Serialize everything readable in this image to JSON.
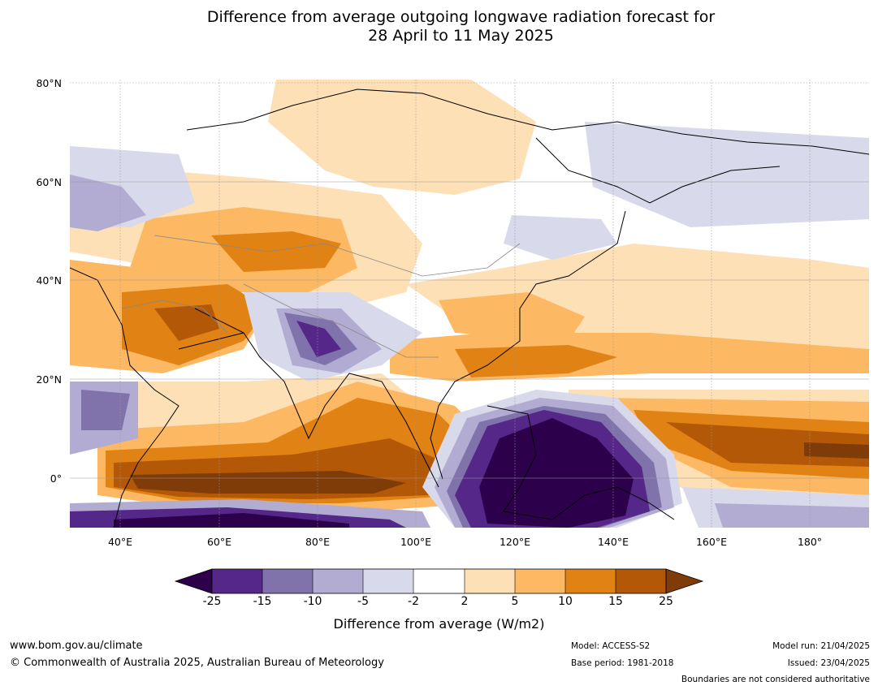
{
  "title_line1": "Difference from average outgoing longwave radiation forecast for",
  "title_line2": "28 April to 11 May 2025",
  "lat_labels": [
    "80°N",
    "60°N",
    "40°N",
    "20°N",
    "0°"
  ],
  "lon_labels": [
    "40°E",
    "60°E",
    "80°E",
    "100°E",
    "120°E",
    "140°E",
    "160°E",
    "180°"
  ],
  "colorbar": {
    "ticks": [
      "-25",
      "-15",
      "-10",
      "-5",
      "-2",
      "2",
      "5",
      "10",
      "15",
      "25"
    ],
    "colors": [
      "#2d004b",
      "#542788",
      "#8073ac",
      "#b2abd2",
      "#d8daeb",
      "#ffffff",
      "#fee0b6",
      "#fdb863",
      "#e08214",
      "#b35806",
      "#7f3b08"
    ],
    "label": "Difference from average (W/m2)"
  },
  "footer": {
    "website": "www.bom.gov.au/climate",
    "copyright": "© Commonwealth of Australia 2025, Australian Bureau of Meteorology",
    "model": "Model: ACCESS-S2",
    "base_period": "Base period: 1981-2018",
    "model_run": "Model run: 21/04/2025",
    "issued": "Issued: 23/04/2025",
    "boundaries": "Boundaries are not considered authoritative"
  }
}
